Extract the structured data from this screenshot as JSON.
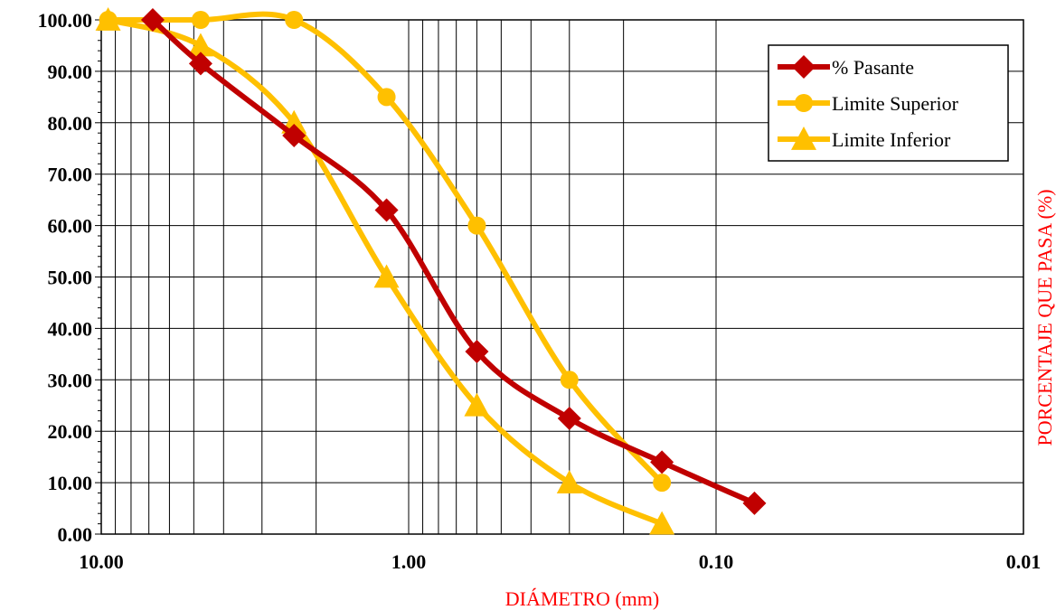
{
  "chart_data": {
    "type": "line",
    "x_scale": "log",
    "x_reversed": true,
    "xlim": [
      10,
      0.01
    ],
    "ylim": [
      0,
      100
    ],
    "xlabel": "DIÁMETRO (mm)",
    "ylabel": "PORCENTAJE QUE PASA (%)",
    "x_tick_labels": [
      "10.00",
      "1.00",
      "0.10",
      "0.01"
    ],
    "x_ticks": [
      10,
      1,
      0.1,
      0.01
    ],
    "y_tick_labels": [
      "0.00",
      "10.00",
      "20.00",
      "30.00",
      "40.00",
      "50.00",
      "60.00",
      "70.00",
      "80.00",
      "90.00",
      "100.00"
    ],
    "y_ticks": [
      0,
      10,
      20,
      30,
      40,
      50,
      60,
      70,
      80,
      90,
      100
    ],
    "grid": true,
    "legend_position": "top-right",
    "series": [
      {
        "name": "% Pasante",
        "color": "#c00000",
        "marker": "diamond",
        "x": [
          6.8,
          4.75,
          2.36,
          1.18,
          0.6,
          0.3,
          0.15,
          0.075
        ],
        "y": [
          100,
          91.5,
          77.5,
          63,
          35.5,
          22.5,
          14,
          6
        ]
      },
      {
        "name": "Limite Superior",
        "color": "#ffc000",
        "marker": "circle",
        "x": [
          9.5,
          4.75,
          2.36,
          1.18,
          0.6,
          0.3,
          0.15
        ],
        "y": [
          100,
          100,
          100,
          85,
          60,
          30,
          10
        ]
      },
      {
        "name": "Limite Inferior",
        "color": "#ffc000",
        "marker": "triangle",
        "x": [
          9.5,
          4.75,
          2.36,
          1.18,
          0.6,
          0.3,
          0.15
        ],
        "y": [
          100,
          95,
          80,
          50,
          25,
          10,
          2
        ]
      }
    ]
  }
}
